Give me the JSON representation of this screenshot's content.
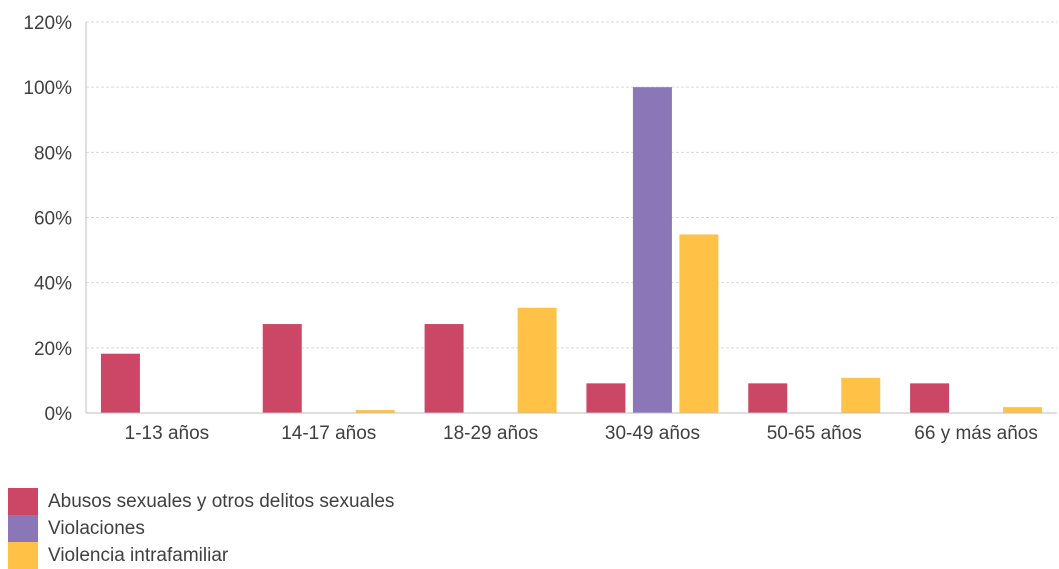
{
  "chart_data": {
    "type": "bar",
    "categories": [
      "1-13 años",
      "14-17 años",
      "18-29 años",
      "30-49 años",
      "50-65 años",
      "66 y más años"
    ],
    "series": [
      {
        "name": "Abusos sexuales y otros delitos sexuales",
        "color": "#cc4766",
        "values": [
          18.2,
          27.3,
          27.3,
          9.1,
          9.1,
          9.1
        ]
      },
      {
        "name": "Violaciones",
        "color": "#8b76b8",
        "values": [
          0,
          0,
          0,
          100,
          0,
          0
        ]
      },
      {
        "name": "Violencia intrafamiliar",
        "color": "#ffc246",
        "values": [
          0,
          0.9,
          32.3,
          54.8,
          10.8,
          1.8
        ]
      }
    ],
    "yticks": [
      "0%",
      "20%",
      "40%",
      "60%",
      "80%",
      "100%",
      "120%"
    ],
    "ylim": [
      0,
      120
    ],
    "grid": true,
    "legend_position": "bottom-left",
    "title": "",
    "xlabel": "",
    "ylabel": ""
  }
}
